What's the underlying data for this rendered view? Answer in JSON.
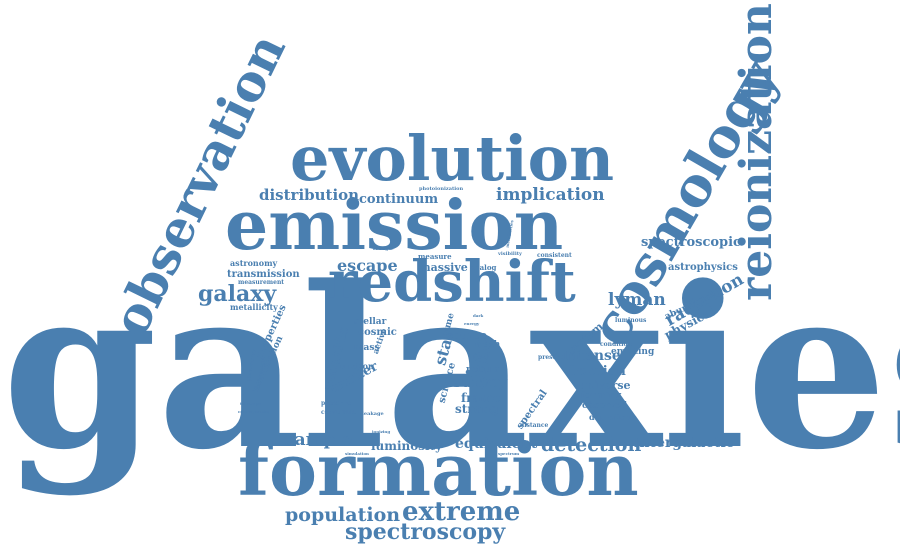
{
  "palette": {
    "text": "#4a7fb0",
    "background": "#ffffff"
  },
  "words": [
    {
      "text": "galaxies",
      "weight": 100
    },
    {
      "text": "formation",
      "weight": 48
    },
    {
      "text": "emission",
      "weight": 44
    },
    {
      "text": "evolution",
      "weight": 42
    },
    {
      "text": "redshift",
      "weight": 40
    },
    {
      "text": "observation",
      "weight": 36
    },
    {
      "text": "cosmology",
      "weight": 34
    },
    {
      "text": "reionization",
      "weight": 34
    },
    {
      "text": "extreme",
      "weight": 16
    },
    {
      "text": "spectroscopy",
      "weight": 15
    },
    {
      "text": "population",
      "weight": 14
    },
    {
      "text": "galaxy",
      "weight": 14
    },
    {
      "text": "line",
      "weight": 14
    },
    {
      "text": "detection",
      "weight": 13
    },
    {
      "text": "implication",
      "weight": 12
    },
    {
      "text": "radiation",
      "weight": 12
    },
    {
      "text": "lyman",
      "weight": 12
    },
    {
      "text": "escape",
      "weight": 11
    },
    {
      "text": "sample",
      "weight": 11
    },
    {
      "text": "luminosity",
      "weight": 9
    },
    {
      "text": "equivalent",
      "weight": 9
    },
    {
      "text": "intergalactic",
      "weight": 9
    },
    {
      "text": "distribution",
      "weight": 10
    },
    {
      "text": "continuum",
      "weight": 9
    },
    {
      "text": "spectroscopic",
      "weight": 9
    },
    {
      "text": "survey",
      "weight": 9
    },
    {
      "text": "fraction",
      "weight": 9
    },
    {
      "text": "intense",
      "weight": 9
    },
    {
      "text": "physical",
      "weight": 8
    },
    {
      "text": "star",
      "weight": 10
    },
    {
      "text": "strong",
      "weight": 8
    },
    {
      "text": "frame",
      "weight": 8
    },
    {
      "text": "redshifts",
      "weight": 8
    },
    {
      "text": "emitter",
      "weight": 8
    },
    {
      "text": "massive",
      "weight": 7
    },
    {
      "text": "universe",
      "weight": 7
    },
    {
      "text": "source",
      "weight": 7
    },
    {
      "text": "transmission",
      "weight": 6
    },
    {
      "text": "astrophysics",
      "weight": 6
    },
    {
      "text": "astronomy",
      "weight": 5
    },
    {
      "text": "metallicity",
      "weight": 5
    },
    {
      "text": "properties",
      "weight": 6
    },
    {
      "text": "nebular",
      "weight": 6
    },
    {
      "text": "width",
      "weight": 6
    },
    {
      "text": "system",
      "weight": 7
    },
    {
      "text": "forming",
      "weight": 6
    },
    {
      "text": "observed",
      "weight": 6
    },
    {
      "text": "depletion",
      "weight": 5
    },
    {
      "text": "emitting",
      "weight": 6
    },
    {
      "text": "abundance",
      "weight": 5
    },
    {
      "text": "cosmic",
      "weight": 6
    },
    {
      "text": "stellar",
      "weight": 5
    },
    {
      "text": "science",
      "weight": 6
    },
    {
      "text": "spectral",
      "weight": 6
    },
    {
      "text": "measurement",
      "weight": 4
    },
    {
      "text": "reionisation",
      "weight": 5
    },
    {
      "text": "consistent",
      "weight": 4
    },
    {
      "text": "analog",
      "weight": 4
    },
    {
      "text": "visibility",
      "weight": 4
    },
    {
      "text": "luminous",
      "weight": 4
    },
    {
      "text": "measure",
      "weight": 4
    },
    {
      "text": "photoionization",
      "weight": 4
    },
    {
      "text": "present",
      "weight": 4
    },
    {
      "text": "condition",
      "weight": 4
    },
    {
      "text": "distance",
      "weight": 4
    },
    {
      "text": "function",
      "weight": 5
    },
    {
      "text": "photometry",
      "weight": 4
    },
    {
      "text": "technology",
      "weight": 4
    },
    {
      "text": "presence",
      "weight": 4
    },
    {
      "text": "constraint",
      "weight": 4
    },
    {
      "text": "leakage",
      "weight": 4
    },
    {
      "text": "corresponding",
      "weight": 3
    },
    {
      "text": "simulation",
      "weight": 3
    },
    {
      "text": "telescope",
      "weight": 3
    },
    {
      "text": "field",
      "weight": 4
    },
    {
      "text": "mass",
      "weight": 5
    },
    {
      "text": "time",
      "weight": 5
    },
    {
      "text": "active",
      "weight": 5
    },
    {
      "text": "dark",
      "weight": 3
    },
    {
      "text": "energy",
      "weight": 3
    },
    {
      "text": "spectrum",
      "weight": 3
    },
    {
      "text": "analogue",
      "weight": 3
    },
    {
      "text": "ionizing",
      "weight": 3
    },
    {
      "text": "metallicities",
      "weight": 3
    }
  ]
}
